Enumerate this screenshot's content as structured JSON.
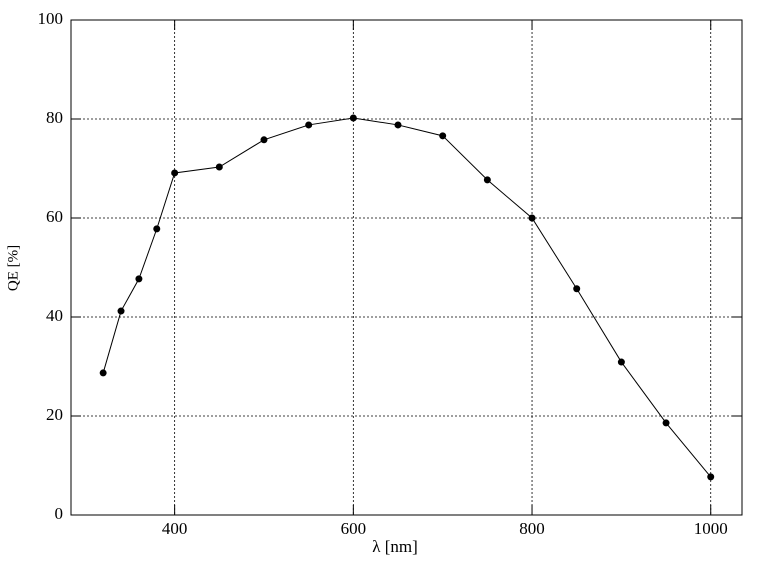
{
  "chart_data": {
    "type": "line",
    "x_label": "λ [nm]",
    "y_label": "QE [%]",
    "x": [
      320,
      340,
      360,
      380,
      400,
      450,
      500,
      550,
      600,
      650,
      700,
      750,
      800,
      850,
      900,
      950,
      1000
    ],
    "series": [
      {
        "color": "#000000",
        "values": [
          28.7,
          41.2,
          47.7,
          57.8,
          69.1,
          70.3,
          75.8,
          78.8,
          80.2,
          78.8,
          76.6,
          67.7,
          60.0,
          45.7,
          30.9,
          18.6,
          7.7
        ]
      }
    ],
    "xlim": [
      284,
      1035
    ],
    "ylim": [
      0,
      100
    ],
    "xticks": [
      400,
      600,
      800,
      1000
    ],
    "yticks": [
      0,
      20,
      40,
      60,
      80,
      100
    ],
    "grid": true
  }
}
